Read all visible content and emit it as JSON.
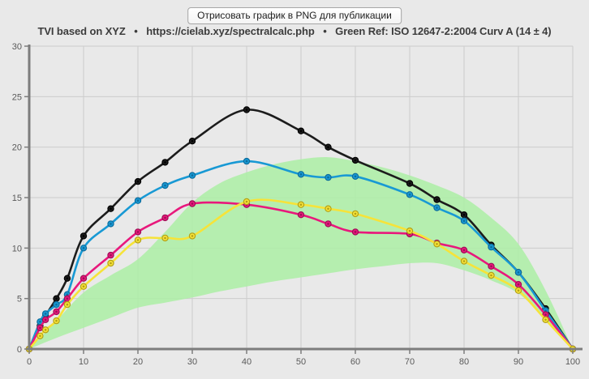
{
  "button": {
    "label": "Отрисовать график в PNG для публикации"
  },
  "title": {
    "text": "TVI based on XYZ   •   https://cielab.xyz/spectralcalc.php   •   Green Ref: ISO 12647-2:2004 Curv A (14 ± 4)"
  },
  "colors": {
    "background": "#e9e9e9",
    "gridline": "#cccccc",
    "axis": "#7d7d7d",
    "tick_label": "#5a5a5a",
    "title_text": "#3c3c3c",
    "reference_band": "#abefa5"
  },
  "chart_data": {
    "type": "line",
    "title": "TVI based on XYZ",
    "source_note": "https://cielab.xyz/spectralcalc.php",
    "reference_note": "Green Ref: ISO 12647-2:2004 Curv A (14 ± 4)",
    "xlabel": "",
    "ylabel": "",
    "xlim": [
      0,
      100
    ],
    "ylim": [
      0,
      30
    ],
    "x_ticks": [
      0,
      10,
      20,
      30,
      40,
      50,
      60,
      70,
      80,
      90,
      100
    ],
    "y_ticks": [
      0,
      5,
      10,
      15,
      20,
      25,
      30
    ],
    "grid": true,
    "legend_position": "none",
    "x": [
      0,
      2,
      3,
      5,
      7,
      10,
      15,
      20,
      25,
      30,
      40,
      50,
      55,
      60,
      70,
      75,
      80,
      85,
      90,
      95,
      100
    ],
    "series": [
      {
        "name": "black",
        "color": "#1c1c1c",
        "marker_edge": "#000000",
        "values": [
          0,
          2.3,
          3.3,
          5.0,
          7.0,
          11.2,
          13.9,
          16.6,
          18.5,
          20.6,
          23.7,
          21.6,
          20.0,
          18.7,
          16.4,
          14.8,
          13.3,
          10.3,
          7.6,
          4.0,
          0
        ]
      },
      {
        "name": "cyan",
        "color": "#1899d4",
        "marker_edge": "#0d6c9c",
        "values": [
          0,
          2.7,
          3.5,
          4.4,
          5.4,
          10.0,
          12.4,
          14.7,
          16.2,
          17.2,
          18.6,
          17.3,
          17.0,
          17.1,
          15.3,
          14.0,
          12.7,
          10.1,
          7.6,
          3.8,
          0
        ]
      },
      {
        "name": "magenta",
        "color": "#e8187c",
        "marker_edge": "#9d0f55",
        "values": [
          0,
          2.1,
          2.9,
          3.7,
          5.0,
          7.0,
          9.3,
          11.6,
          13.0,
          14.4,
          14.3,
          13.3,
          12.4,
          11.6,
          11.4,
          10.5,
          9.8,
          8.2,
          6.4,
          3.4,
          0
        ]
      },
      {
        "name": "yellow",
        "color": "#f6e339",
        "marker_edge": "#b3a016",
        "values": [
          0,
          1.3,
          1.9,
          2.8,
          4.4,
          6.2,
          8.5,
          10.8,
          11.0,
          11.2,
          14.6,
          14.3,
          13.9,
          13.4,
          11.7,
          10.4,
          8.7,
          7.3,
          5.8,
          2.9,
          0
        ]
      }
    ],
    "reference_band": {
      "name": "ISO 12647-2:2004 Curve A (14 ± 4)",
      "x": [
        0,
        5,
        10,
        15,
        20,
        25,
        30,
        35,
        40,
        45,
        50,
        55,
        60,
        65,
        70,
        75,
        80,
        85,
        90,
        95,
        100
      ],
      "upper": [
        0,
        2.8,
        5.6,
        7.3,
        8.9,
        11.6,
        14.5,
        16.4,
        17.5,
        18.3,
        18.8,
        19.0,
        18.6,
        18.0,
        17.2,
        16.2,
        15.0,
        13.0,
        10.4,
        5.8,
        0
      ],
      "lower": [
        0,
        1.1,
        2.1,
        3.1,
        4.1,
        4.6,
        5.1,
        5.7,
        6.2,
        6.7,
        7.1,
        7.5,
        7.9,
        8.2,
        8.5,
        8.5,
        7.8,
        6.8,
        5.5,
        3.0,
        0
      ]
    }
  }
}
